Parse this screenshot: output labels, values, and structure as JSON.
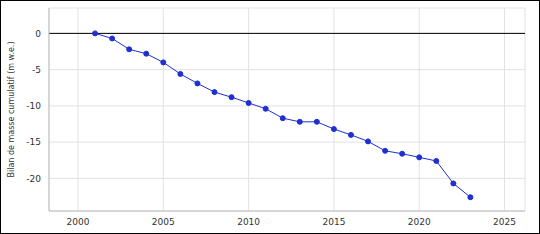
{
  "chart_data": {
    "type": "line",
    "y_label": "Bilan de masse cumulatif (m w.e.)",
    "x": [
      2001,
      2002,
      2003,
      2004,
      2005,
      2006,
      2007,
      2008,
      2009,
      2010,
      2011,
      2012,
      2013,
      2014,
      2015,
      2016,
      2017,
      2018,
      2019,
      2020,
      2021,
      2022,
      2023
    ],
    "values": [
      0,
      -0.7,
      -2.2,
      -2.8,
      -4.0,
      -5.6,
      -6.9,
      -8.1,
      -8.8,
      -9.6,
      -10.4,
      -11.7,
      -12.2,
      -12.2,
      -13.2,
      -14.0,
      -14.9,
      -16.2,
      -16.6,
      -17.1,
      -17.6,
      -20.7,
      -22.6
    ],
    "color": "#1f2fd0",
    "marker": "circle",
    "xlim": [
      1998.3,
      2026.2
    ],
    "xticks": [
      2000,
      2005,
      2010,
      2015,
      2020,
      2025
    ],
    "ylim": [
      -24.5,
      3.5
    ],
    "yticks": [
      -20,
      -15,
      -10,
      -5,
      0
    ],
    "grid": true
  }
}
